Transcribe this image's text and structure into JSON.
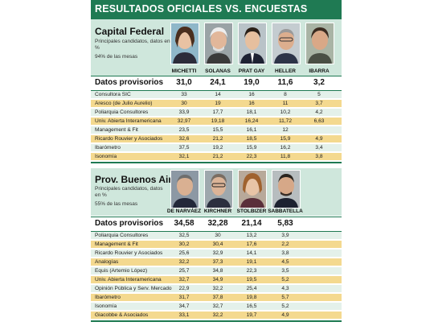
{
  "title": "RESULTADOS OFICIALES VS. ENCUESTAS",
  "capital": {
    "title": "Capital Federal",
    "subtitle": "Principales candidatos, datos en %",
    "note": "94% de las mesas",
    "candidates": [
      "MICHETTI",
      "SOLANAS",
      "PRAT GAY",
      "HELLER",
      "IBARRA"
    ],
    "provisional_label": "Datos provisorios",
    "provisional": [
      "31,0",
      "24,1",
      "19,0",
      "11,6",
      "3,2"
    ],
    "rows": [
      {
        "name": "Consultora SIC",
        "values": [
          "33",
          "14",
          "16",
          "8",
          "5"
        ]
      },
      {
        "name": "Aresco (de Julio Aurelio)",
        "values": [
          "30",
          "19",
          "16",
          "11",
          "3,7"
        ]
      },
      {
        "name": "Poliarquia Consultores",
        "values": [
          "33,9",
          "17,7",
          "18,1",
          "10,2",
          "4,2"
        ]
      },
      {
        "name": "Univ. Abierta Interamericana",
        "values": [
          "32,97",
          "19,18",
          "16,24",
          "11,72",
          "6,63"
        ]
      },
      {
        "name": "Management & Fit",
        "values": [
          "23,5",
          "15,5",
          "16,1",
          "12",
          ""
        ]
      },
      {
        "name": "Ricardo Rouvier y Asociados",
        "values": [
          "32,6",
          "21,2",
          "18,5",
          "15,9",
          "4,9"
        ]
      },
      {
        "name": "Ibarómetro",
        "values": [
          "37,5",
          "19,2",
          "15,9",
          "16,2",
          "3,4"
        ]
      },
      {
        "name": "Isonomía",
        "values": [
          "32,1",
          "21,2",
          "22,3",
          "11,8",
          "3,8"
        ]
      }
    ]
  },
  "buenos_aires": {
    "title": "Prov. Buenos Aires",
    "subtitle": "Principales candidatos, datos en %",
    "note": "55% de las mesas",
    "candidates": [
      "DE NARVÁEZ",
      "KIRCHNER",
      "STOLBIZER",
      "SABBATELLA"
    ],
    "provisional_label": "Datos provisorios",
    "provisional": [
      "34,58",
      "32,28",
      "21,14",
      "5,83"
    ],
    "rows": [
      {
        "name": "Poliarquia Consultores",
        "values": [
          "32,5",
          "30",
          "13,2",
          "3,9"
        ]
      },
      {
        "name": "Management & Fit",
        "values": [
          "30,2",
          "30,4",
          "17,6",
          "2,2"
        ]
      },
      {
        "name": "Ricardo Rouvier y Asociados",
        "values": [
          "25,6",
          "32,9",
          "14,1",
          "3,8"
        ]
      },
      {
        "name": "Analogías",
        "values": [
          "32,2",
          "37,3",
          "19,1",
          "4,5"
        ]
      },
      {
        "name": "Equis (Artemio López)",
        "values": [
          "25,7",
          "34,8",
          "22,3",
          "3,5"
        ]
      },
      {
        "name": "Univ. Abierta Interamericana",
        "values": [
          "32,7",
          "34,9",
          "19,5",
          "5,2"
        ]
      },
      {
        "name": "Opinión Pública y Serv. Mercado",
        "values": [
          "22,9",
          "32,2",
          "25,4",
          "4,3"
        ]
      },
      {
        "name": "Ibarómetro",
        "values": [
          "31,7",
          "37,8",
          "19,8",
          "5,7"
        ]
      },
      {
        "name": "Isonomía",
        "values": [
          "34,7",
          "32,7",
          "16,5",
          "5,2"
        ]
      },
      {
        "name": "Giacobbe & Asociados",
        "values": [
          "33,1",
          "32,2",
          "19,7",
          "4,9"
        ]
      }
    ]
  },
  "colors": {
    "header_green": "#1f7a53",
    "section_bg": "#cfe7dc",
    "row_green": "#e4f1ea",
    "row_yellow": "#f4d98f"
  }
}
